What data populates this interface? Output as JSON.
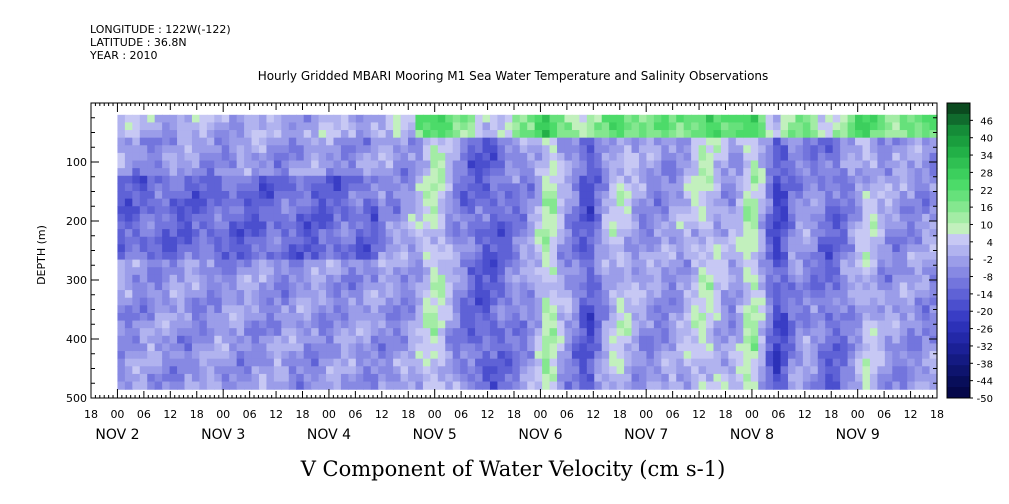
{
  "header": {
    "longitude": "LONGITUDE : 122W(-122)",
    "latitude": "LATITUDE : 36.8N",
    "year": "YEAR : 2010",
    "title": "Hourly Gridded MBARI Mooring M1 Sea Water Temperature and Salinity Observations"
  },
  "chart_data": {
    "type": "heatmap",
    "title": "V Component of Water Velocity (cm s-1)",
    "ylabel": "DEPTH (m)",
    "y_reversed": true,
    "ylim": [
      500,
      0
    ],
    "data_depth_range": [
      20,
      485
    ],
    "y_ticks": [
      100,
      200,
      300,
      400,
      500
    ],
    "y_tick_labels": [
      "100",
      "200",
      "300",
      "400",
      "500"
    ],
    "x_range_days": [
      1.75,
      9.75
    ],
    "x_hour_ticks": [
      {
        "d": 1.75,
        "label": "18"
      },
      {
        "d": 2.0,
        "label": "00"
      },
      {
        "d": 2.25,
        "label": "06"
      },
      {
        "d": 2.5,
        "label": "12"
      },
      {
        "d": 2.75,
        "label": "18"
      },
      {
        "d": 3.0,
        "label": "00"
      },
      {
        "d": 3.25,
        "label": "06"
      },
      {
        "d": 3.5,
        "label": "12"
      },
      {
        "d": 3.75,
        "label": "18"
      },
      {
        "d": 4.0,
        "label": "00"
      },
      {
        "d": 4.25,
        "label": "06"
      },
      {
        "d": 4.5,
        "label": "12"
      },
      {
        "d": 4.75,
        "label": "18"
      },
      {
        "d": 5.0,
        "label": "00"
      },
      {
        "d": 5.25,
        "label": "06"
      },
      {
        "d": 5.5,
        "label": "12"
      },
      {
        "d": 5.75,
        "label": "18"
      },
      {
        "d": 6.0,
        "label": "00"
      },
      {
        "d": 6.25,
        "label": "06"
      },
      {
        "d": 6.5,
        "label": "12"
      },
      {
        "d": 6.75,
        "label": "18"
      },
      {
        "d": 7.0,
        "label": "00"
      },
      {
        "d": 7.25,
        "label": "06"
      },
      {
        "d": 7.5,
        "label": "12"
      },
      {
        "d": 7.75,
        "label": "18"
      },
      {
        "d": 8.0,
        "label": "00"
      },
      {
        "d": 8.25,
        "label": "06"
      },
      {
        "d": 8.5,
        "label": "12"
      },
      {
        "d": 8.75,
        "label": "18"
      },
      {
        "d": 9.0,
        "label": "00"
      },
      {
        "d": 9.25,
        "label": "06"
      },
      {
        "d": 9.5,
        "label": "12"
      },
      {
        "d": 9.75,
        "label": "18"
      }
    ],
    "x_day_labels": [
      {
        "d": 2.0,
        "label": "NOV 2"
      },
      {
        "d": 3.0,
        "label": "NOV 3"
      },
      {
        "d": 4.0,
        "label": "NOV 4"
      },
      {
        "d": 5.0,
        "label": "NOV 5"
      },
      {
        "d": 6.0,
        "label": "NOV 6"
      },
      {
        "d": 7.0,
        "label": "NOV 7"
      },
      {
        "d": 8.0,
        "label": "NOV 8"
      },
      {
        "d": 9.0,
        "label": "NOV 9"
      }
    ],
    "colorbar": {
      "levels": [
        46,
        40,
        34,
        28,
        22,
        16,
        10,
        4,
        -2,
        -8,
        -14,
        -20,
        -26,
        -32,
        -38,
        -44,
        -50
      ],
      "level_labels": [
        "46",
        "40",
        "34",
        "28",
        "22",
        "16",
        "10",
        "4",
        "-2",
        "-8",
        "-14",
        "-20",
        "-26",
        "-32",
        "-38",
        "-44",
        "-50"
      ],
      "max": 52,
      "min": -50,
      "colors": [
        "#0b4a1f",
        "#106b2d",
        "#158c38",
        "#1a9e3e",
        "#22b047",
        "#2fc052",
        "#3ccf5d",
        "#4cdb69",
        "#66e17b",
        "#84e78f",
        "#a3eca5",
        "#c2f0bd",
        "#c7c8f4",
        "#b1b3ef",
        "#9b9de9",
        "#8789e3",
        "#7375dd",
        "#5f62d6",
        "#4b4fce",
        "#393dc5",
        "#2c31b8",
        "#2328a8",
        "#1b2096",
        "#141a82",
        "#0e146e",
        "#080e5a",
        "#05084a"
      ]
    },
    "stripe_anomalies": [
      {
        "d": 5.0,
        "w": 0.2,
        "v": 12
      },
      {
        "d": 5.5,
        "w": 0.35,
        "v": -10
      },
      {
        "d": 6.08,
        "w": 0.15,
        "v": 14
      },
      {
        "d": 6.45,
        "w": 0.15,
        "v": -12
      },
      {
        "d": 6.75,
        "w": 0.2,
        "v": 8
      },
      {
        "d": 7.55,
        "w": 0.25,
        "v": 10
      },
      {
        "d": 8.0,
        "w": 0.15,
        "v": 14
      },
      {
        "d": 8.25,
        "w": 0.15,
        "v": -14
      },
      {
        "d": 8.75,
        "w": 0.2,
        "v": -8
      },
      {
        "d": 9.1,
        "w": 0.15,
        "v": 8
      }
    ]
  }
}
